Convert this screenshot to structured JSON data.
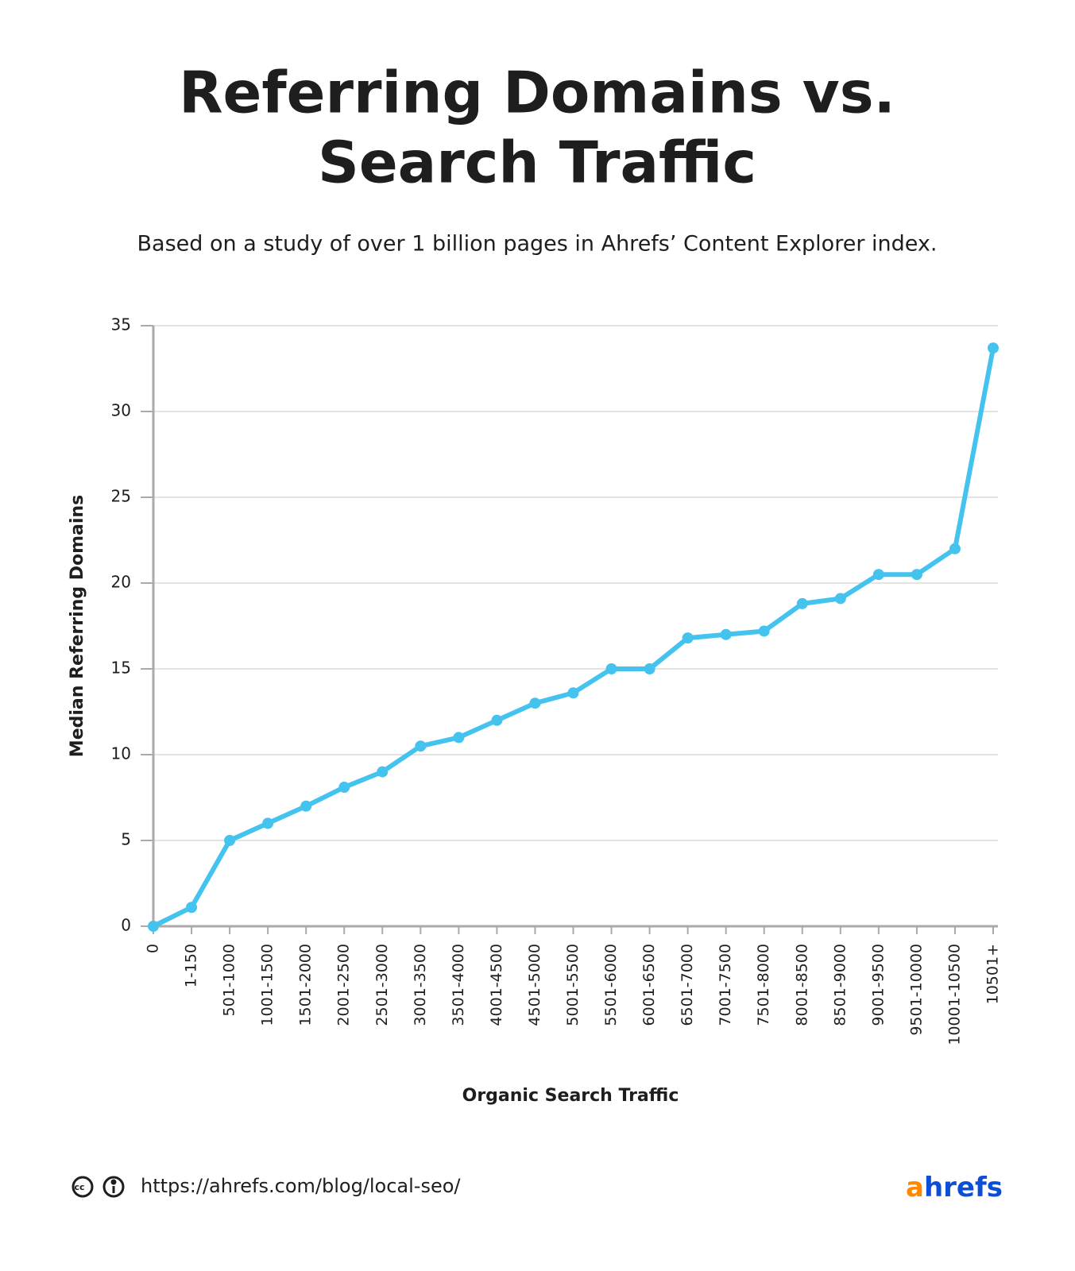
{
  "chart_data": {
    "type": "line",
    "title": [
      "Referring Domains vs.",
      "Search Traffic"
    ],
    "subtitle": "Based on a study of over 1 billion pages in Ahrefs’ Content Explorer index.",
    "x_label": "Organic Search Traffic",
    "y_label": "Median Referring Domains",
    "categories": [
      "0",
      "1-150",
      "501-1000",
      "1001-1500",
      "1501-2000",
      "2001-2500",
      "2501-3000",
      "3001-3500",
      "3501-4000",
      "4001-4500",
      "4501-5000",
      "5001-5500",
      "5501-6000",
      "6001-6500",
      "6501-7000",
      "7001-7500",
      "7501-8000",
      "8001-8500",
      "8501-9000",
      "9001-9500",
      "9501-10000",
      "10001-10500",
      "10501+"
    ],
    "values": [
      0,
      1.1,
      5,
      6,
      7,
      8.1,
      9,
      10.5,
      11,
      12,
      13,
      13.6,
      15,
      15,
      16.8,
      17,
      17.2,
      18.8,
      19.1,
      20.5,
      20.5,
      22,
      33.7
    ],
    "color": "#45c3ef",
    "ylim": [
      0,
      35
    ],
    "yticks": [
      0,
      5,
      10,
      15,
      20,
      25,
      30,
      35
    ],
    "grid": true
  },
  "footer": {
    "url": "https://ahrefs.com/blog/local-seo/",
    "logo_parts": [
      "a",
      "hrefs"
    ]
  }
}
